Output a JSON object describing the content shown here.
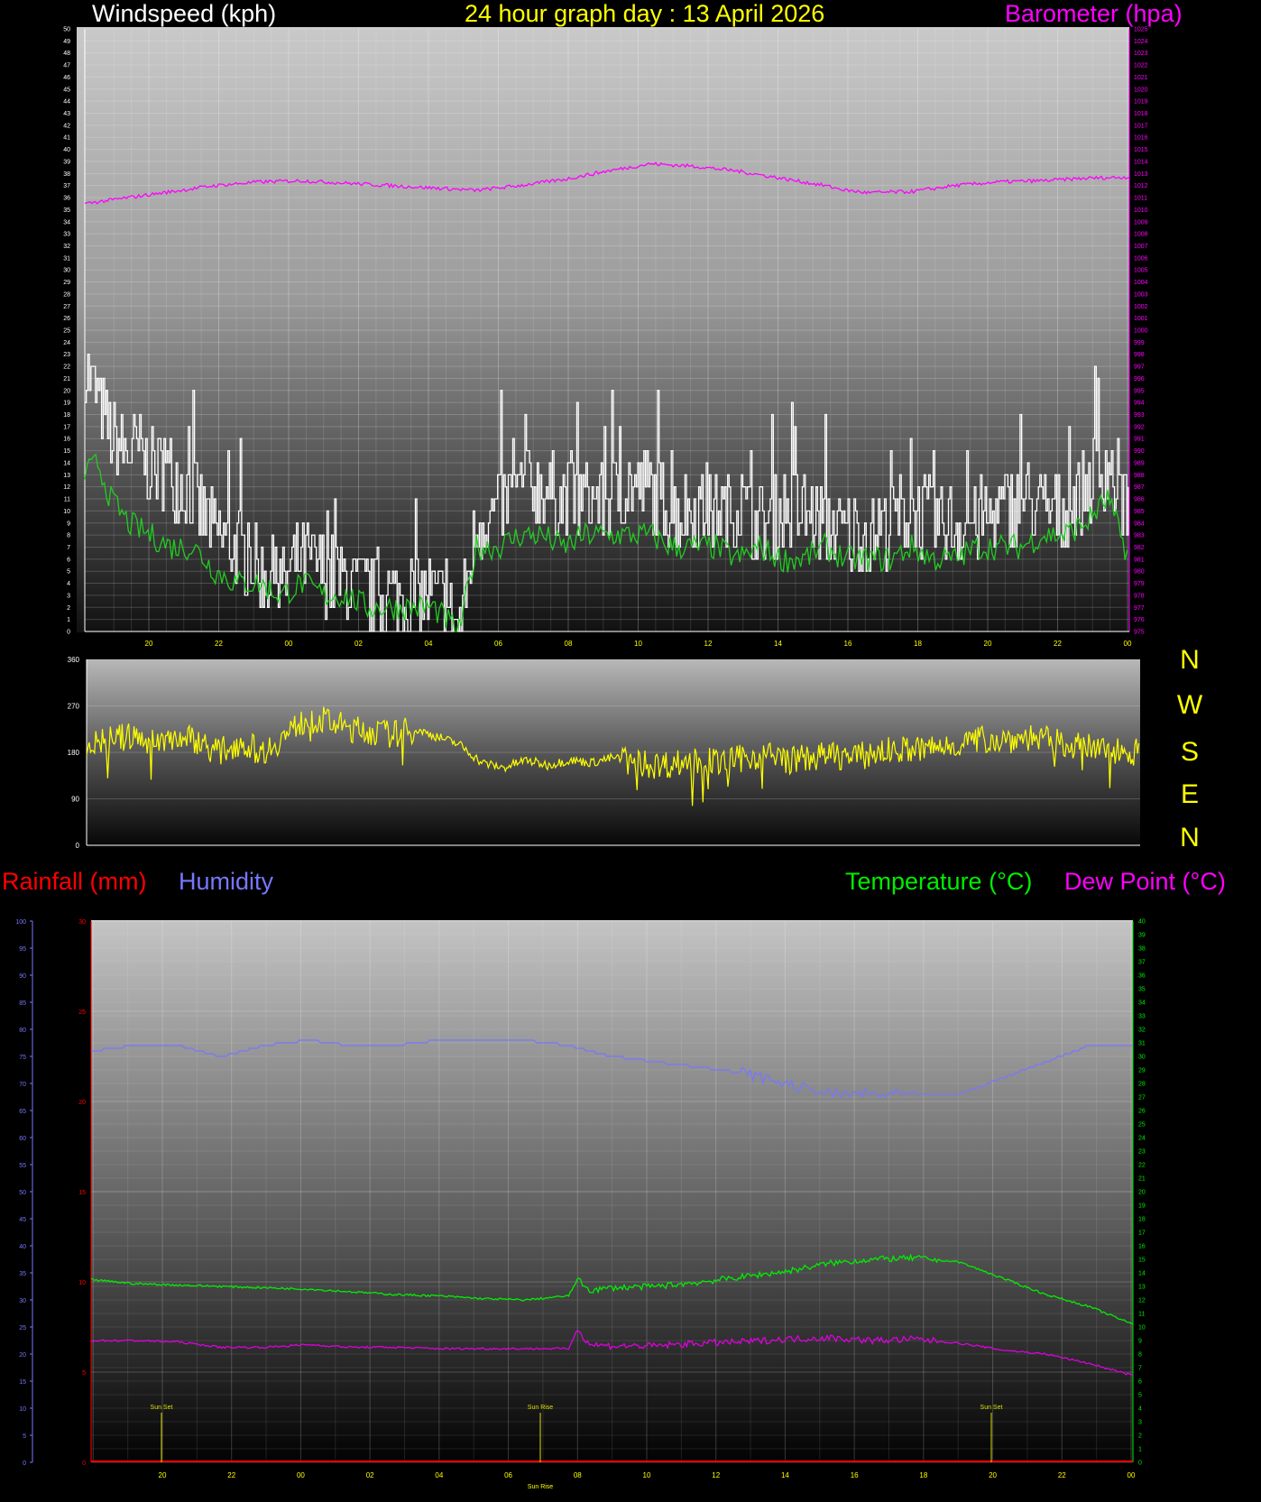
{
  "headers": {
    "wind_title": "Windspeed (kph)",
    "date_title": "24 hour graph day : 13 April 2026",
    "baro_title": "Barometer (hpa)",
    "rain_title": "Rainfall (mm)",
    "hum_title": "Humidity",
    "temp_title": "Temperature (°C)",
    "dew_title": "Dew Point (°C)"
  },
  "compass": [
    "N",
    "W",
    "S",
    "E",
    "N"
  ],
  "colors": {
    "wind": "#ffffff",
    "wind_avg": "#22cc22",
    "baro": "#ff00ff",
    "direction": "#ffff00",
    "rain": "#ff0000",
    "humidity": "#7777ff",
    "temperature": "#00ee00",
    "dewpoint": "#dd00dd",
    "sun": "#dddd00",
    "date_title": "#ffff00",
    "wind_title": "#ffffff",
    "baro_title": "#ff00ff",
    "rain_title": "#ff0000",
    "hum_title": "#7777ff",
    "temp_title": "#00ee00",
    "dew_title": "#ff00ff"
  },
  "chart_data": [
    {
      "type": "line",
      "name": "wind-baro",
      "x_ticks": [
        "20",
        "22",
        "00",
        "02",
        "04",
        "06",
        "08",
        "10",
        "12",
        "14",
        "16",
        "18",
        "20",
        "22",
        "00"
      ],
      "x_range_hours": [
        0,
        24
      ],
      "x_tick_start_hour": 0.9,
      "y_left_range": [
        0,
        50
      ],
      "y_left_step": 1,
      "y_right_range": [
        975,
        1025
      ],
      "y_right_step": 1,
      "grid": true,
      "series": [
        {
          "key": "wind_gust",
          "axis": "left",
          "x": [
            0,
            0.3,
            0.6,
            1,
            1.5,
            2,
            2.5,
            3,
            3.5,
            4,
            4.5,
            5,
            5.5,
            6,
            6.5,
            7,
            7.5,
            8,
            8.3,
            8.6,
            9,
            9.5,
            10,
            10.5,
            11,
            11.5,
            12,
            12.5,
            13,
            13.5,
            14,
            14.5,
            15,
            15.5,
            16,
            16.5,
            17,
            17.5,
            18,
            18.5,
            19,
            19.5,
            20,
            20.5,
            21,
            21.5,
            22,
            22.5,
            23,
            23.5,
            24
          ],
          "values": [
            22,
            19,
            16,
            15,
            14,
            13,
            11,
            8,
            7,
            5,
            4,
            6,
            5,
            4,
            3,
            3,
            3,
            3,
            2,
            0,
            9,
            10,
            12,
            12,
            11,
            11,
            11,
            12,
            12,
            10,
            10,
            10,
            10,
            9,
            10,
            10,
            9,
            8,
            8,
            9,
            10,
            9,
            9,
            9,
            10,
            11,
            10,
            10,
            12,
            14,
            10
          ]
        },
        {
          "key": "wind_avg",
          "axis": "left",
          "x": [
            0,
            0.3,
            0.6,
            1,
            1.5,
            2,
            2.5,
            3,
            3.5,
            4,
            4.5,
            5,
            5.5,
            6,
            6.5,
            7,
            7.5,
            8,
            8.3,
            8.6,
            9,
            9.5,
            10,
            10.5,
            11,
            11.5,
            12,
            12.5,
            13,
            13.5,
            14,
            14.5,
            15,
            15.5,
            16,
            16.5,
            17,
            17.5,
            18,
            18.5,
            19,
            19.5,
            20,
            20.5,
            21,
            21.5,
            22,
            22.5,
            23,
            23.5,
            24
          ],
          "values": [
            13,
            14,
            11,
            9,
            8,
            7,
            7,
            5,
            4,
            4,
            3,
            4,
            3,
            3,
            2,
            2,
            2,
            2,
            1,
            0,
            7,
            7,
            8,
            8,
            7,
            8,
            8,
            8,
            8,
            7,
            7,
            7,
            6,
            7,
            6,
            6,
            7,
            6,
            6,
            6,
            7,
            6,
            6,
            7,
            7,
            7,
            8,
            8,
            9,
            11,
            6
          ]
        },
        {
          "key": "barometer",
          "axis": "right",
          "x": [
            0,
            1,
            2,
            3,
            4,
            5,
            6,
            7,
            8,
            9,
            10,
            11,
            12,
            13,
            14,
            15,
            16,
            17,
            17.5,
            18,
            19,
            20,
            21,
            22,
            23,
            24
          ],
          "values": [
            1010.5,
            1011,
            1011.5,
            1012,
            1012.3,
            1012.4,
            1012.2,
            1012,
            1011.8,
            1011.6,
            1012,
            1012.5,
            1013.2,
            1013.8,
            1013.6,
            1013.2,
            1012.6,
            1012,
            1011.6,
            1011.4,
            1011.5,
            1012,
            1012.3,
            1012.4,
            1012.6,
            1012.7
          ]
        }
      ]
    },
    {
      "type": "line",
      "name": "wind-direction",
      "y_range": [
        0,
        360
      ],
      "y_ticks": [
        0,
        90,
        180,
        270,
        360
      ],
      "x_range_hours": [
        0,
        24
      ],
      "grid": true,
      "series": [
        {
          "key": "direction",
          "x": [
            0,
            0.5,
            1,
            1.5,
            2,
            2.5,
            3,
            3.5,
            4,
            4.5,
            5,
            5.5,
            6,
            6.5,
            7,
            7.5,
            8,
            8.5,
            9,
            9.5,
            10,
            10.5,
            11,
            11.5,
            12,
            12.5,
            13,
            13.5,
            14,
            14.5,
            15,
            15.5,
            16,
            16.5,
            17,
            17.5,
            18,
            18.5,
            19,
            19.5,
            20,
            20.5,
            21,
            21.5,
            22,
            22.5,
            23,
            23.5,
            24
          ],
          "values": [
            195,
            205,
            210,
            200,
            210,
            205,
            180,
            200,
            180,
            210,
            245,
            240,
            225,
            220,
            215,
            225,
            210,
            195,
            160,
            150,
            165,
            155,
            165,
            160,
            170,
            160,
            155,
            160,
            165,
            160,
            170,
            175,
            165,
            170,
            175,
            170,
            180,
            185,
            185,
            190,
            200,
            205,
            205,
            210,
            200,
            195,
            185,
            185,
            180
          ]
        }
      ]
    },
    {
      "type": "line",
      "name": "temp-hum-rain",
      "x_ticks": [
        "20",
        "22",
        "00",
        "02",
        "04",
        "06",
        "08",
        "10",
        "12",
        "14",
        "16",
        "18",
        "20",
        "22",
        "00"
      ],
      "x_range_hours": [
        0,
        24
      ],
      "x_tick_start_hour": 1.68,
      "y_rain_range": [
        0,
        30
      ],
      "y_rain_ticks": [
        0,
        5,
        10,
        15,
        20,
        25,
        30
      ],
      "y_hum_range": [
        0,
        100
      ],
      "y_hum_step": 5,
      "y_temp_range": [
        0,
        40
      ],
      "y_temp_step": 1,
      "grid": true,
      "series": [
        {
          "key": "humidity",
          "axis": "hum",
          "x": [
            0,
            1,
            2,
            2.5,
            3,
            4,
            5,
            6,
            7,
            8,
            9,
            10,
            11,
            11.5,
            12,
            13,
            14,
            15,
            15.5,
            16,
            17,
            18,
            19,
            20,
            21,
            22,
            23,
            24
          ],
          "values": [
            76,
            77,
            77,
            76,
            75,
            77,
            78,
            77,
            77,
            78,
            78,
            78,
            77,
            76,
            75,
            74,
            73,
            72,
            71,
            70,
            68,
            68,
            68,
            68,
            71,
            74,
            77,
            77
          ]
        },
        {
          "key": "temperature",
          "axis": "temp",
          "x": [
            0,
            1,
            2,
            3,
            4,
            5,
            6,
            7,
            8,
            9,
            10,
            11,
            11.2,
            11.5,
            12,
            13,
            14,
            15,
            16,
            17,
            18,
            19,
            20,
            21,
            22,
            23,
            24
          ],
          "values": [
            13.5,
            13.2,
            13.1,
            13.0,
            12.9,
            12.8,
            12.6,
            12.4,
            12.3,
            12.1,
            12.0,
            12.3,
            13.5,
            12.7,
            12.9,
            13.0,
            13.3,
            13.7,
            14.1,
            14.7,
            15.0,
            15.1,
            14.8,
            13.6,
            12.4,
            11.5,
            10.2
          ]
        },
        {
          "key": "dewpoint",
          "axis": "temp",
          "x": [
            0,
            1,
            2,
            3,
            4,
            5,
            6,
            7,
            8,
            9,
            10,
            11,
            11.2,
            11.5,
            12,
            13,
            14,
            15,
            16,
            17,
            18,
            19,
            20,
            21,
            22,
            23,
            24
          ],
          "values": [
            9,
            9,
            8.9,
            8.5,
            8.5,
            8.7,
            8.5,
            8.5,
            8.4,
            8.4,
            8.4,
            8.4,
            9.8,
            8.7,
            8.6,
            8.6,
            8.8,
            8.9,
            9.1,
            9.2,
            9.0,
            9.1,
            8.8,
            8.3,
            8.0,
            7.3,
            6.4
          ]
        },
        {
          "key": "rainfall",
          "axis": "rain",
          "x": [
            0,
            24
          ],
          "values": [
            0,
            0
          ]
        }
      ],
      "markers": [
        {
          "label": "Sun Set",
          "hour": 2.0
        },
        {
          "label": "Sun Rise",
          "hour": 12.9
        },
        {
          "label": "Sun Set",
          "hour": 25.96
        }
      ],
      "marker_axis_label": "Sun Rise"
    }
  ]
}
